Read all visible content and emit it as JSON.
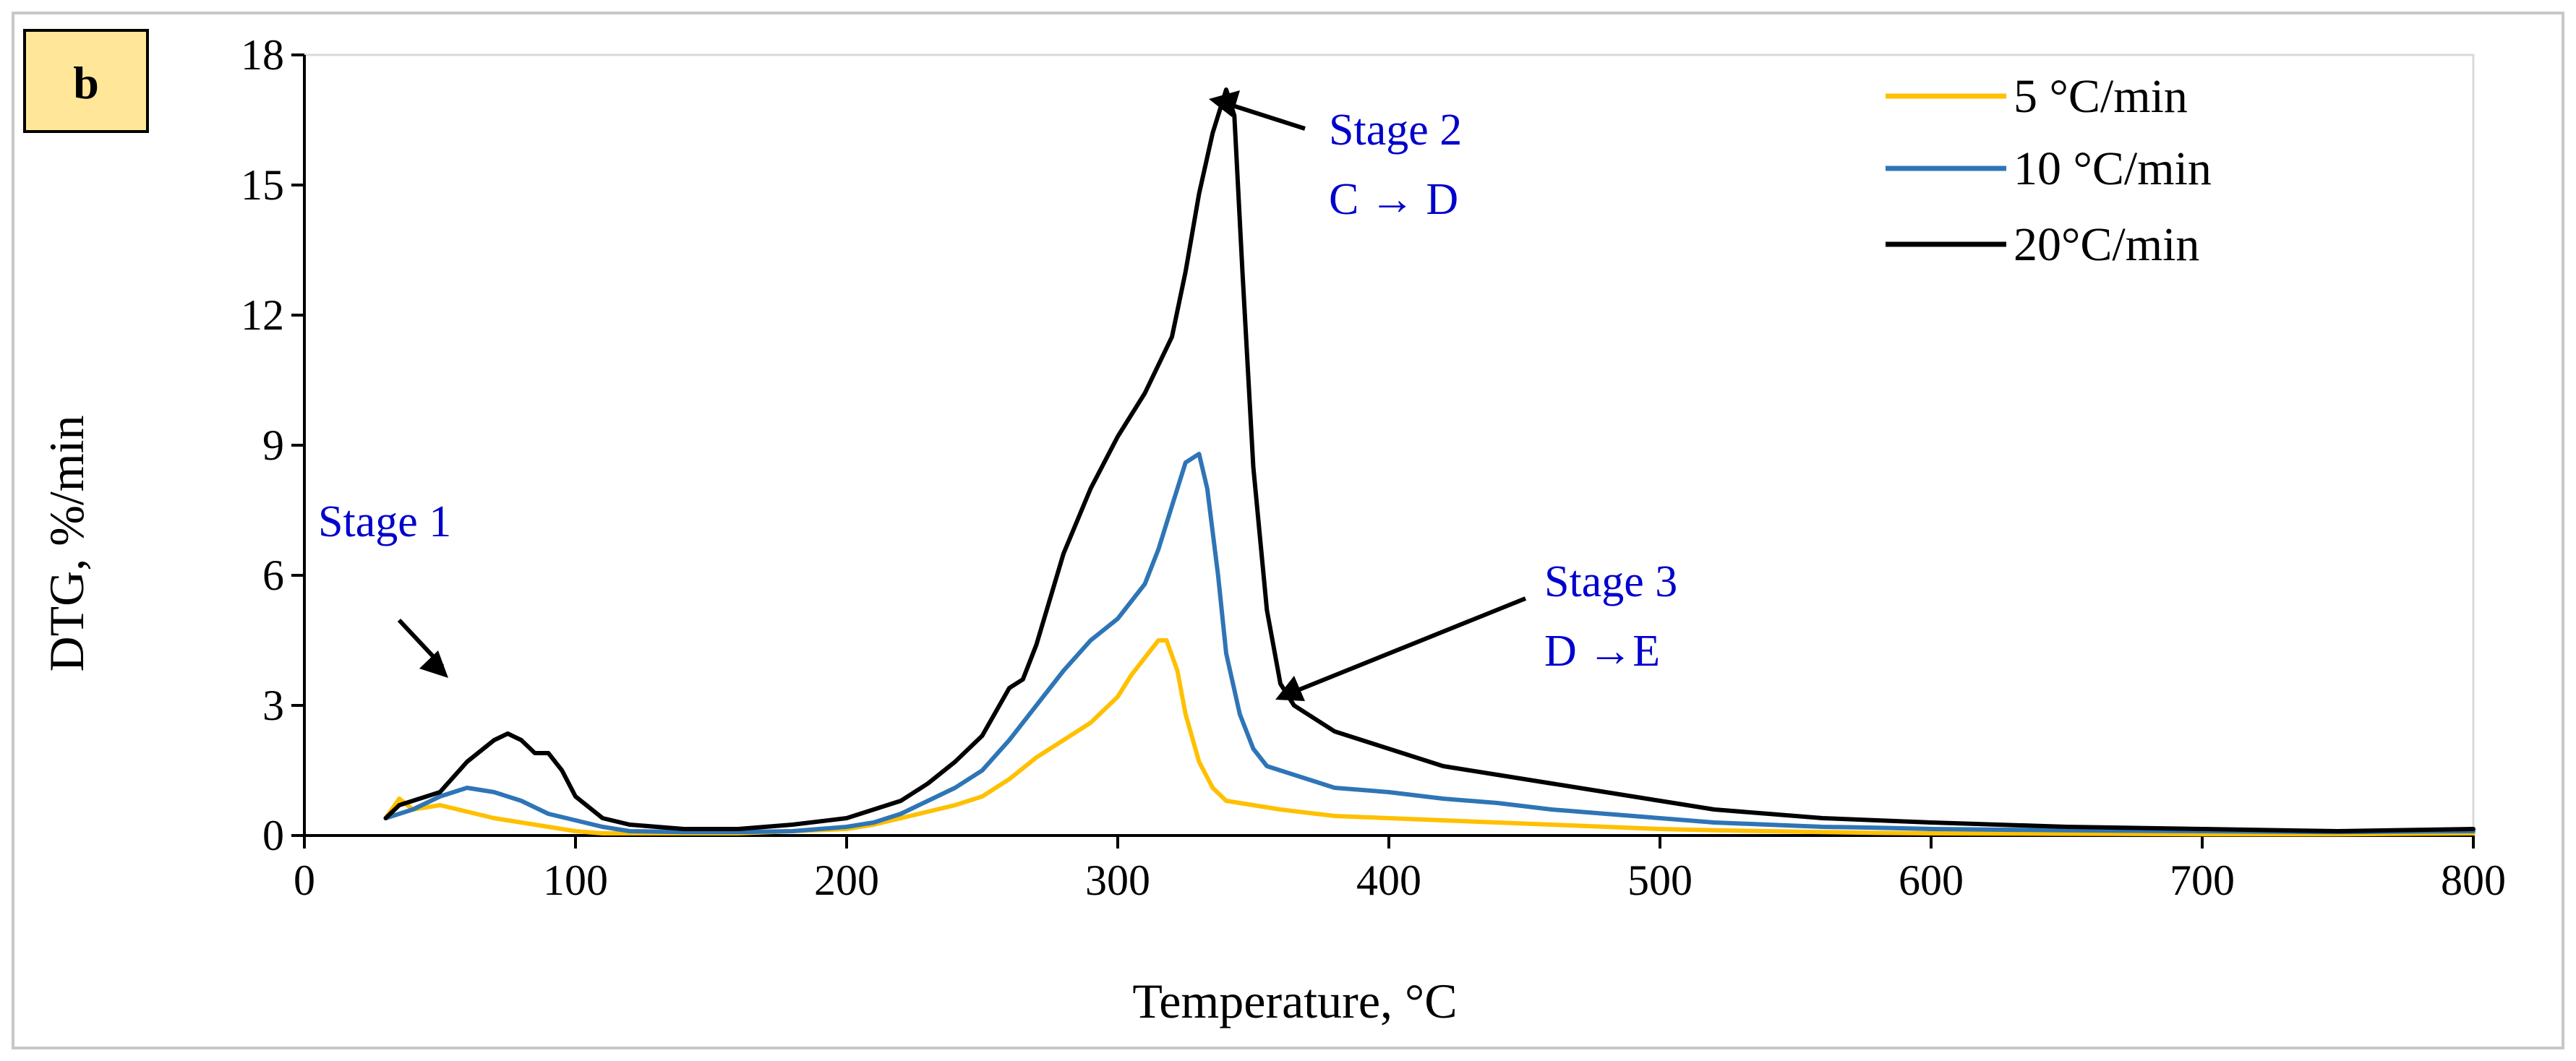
{
  "chart_data": {
    "type": "line",
    "panel_label": "b",
    "xlabel": "Temperature, °C",
    "ylabel": "DTG, %/min",
    "xlim": [
      0,
      800
    ],
    "ylim": [
      0,
      18
    ],
    "xticks": [
      0,
      100,
      200,
      300,
      400,
      500,
      600,
      700,
      800
    ],
    "yticks": [
      0,
      3,
      6,
      9,
      12,
      15,
      18
    ],
    "grid": false,
    "legend_position": "top-right",
    "series": [
      {
        "name": "5 °C/min",
        "color": "#FFC000",
        "x": [
          30,
          35,
          40,
          50,
          60,
          70,
          80,
          90,
          100,
          110,
          120,
          140,
          160,
          180,
          200,
          210,
          220,
          230,
          240,
          250,
          260,
          270,
          280,
          290,
          300,
          305,
          310,
          315,
          318,
          322,
          325,
          330,
          335,
          340,
          350,
          360,
          380,
          400,
          420,
          440,
          460,
          480,
          500,
          520,
          540,
          560,
          580,
          600,
          650,
          700,
          750,
          800
        ],
        "y": [
          0.4,
          0.85,
          0.6,
          0.7,
          0.55,
          0.4,
          0.3,
          0.2,
          0.1,
          0.05,
          0.05,
          0.05,
          0.05,
          0.1,
          0.15,
          0.25,
          0.4,
          0.55,
          0.7,
          0.9,
          1.3,
          1.8,
          2.2,
          2.6,
          3.2,
          3.7,
          4.1,
          4.5,
          4.5,
          3.8,
          2.8,
          1.7,
          1.1,
          0.8,
          0.7,
          0.6,
          0.45,
          0.4,
          0.35,
          0.3,
          0.25,
          0.2,
          0.15,
          0.12,
          0.1,
          0.08,
          0.06,
          0.05,
          0.04,
          0.03,
          0.03,
          0.05
        ]
      },
      {
        "name": "10 °C/min",
        "color": "#2E75B6",
        "x": [
          30,
          40,
          50,
          60,
          70,
          80,
          90,
          100,
          110,
          120,
          140,
          160,
          180,
          200,
          210,
          220,
          230,
          240,
          250,
          260,
          270,
          280,
          290,
          300,
          310,
          315,
          320,
          325,
          330,
          333,
          337,
          340,
          345,
          350,
          355,
          360,
          370,
          380,
          400,
          420,
          440,
          460,
          480,
          500,
          520,
          540,
          560,
          580,
          600,
          650,
          700,
          750,
          800
        ],
        "y": [
          0.4,
          0.6,
          0.9,
          1.1,
          1.0,
          0.8,
          0.5,
          0.35,
          0.2,
          0.1,
          0.08,
          0.08,
          0.1,
          0.2,
          0.3,
          0.5,
          0.8,
          1.1,
          1.5,
          2.2,
          3.0,
          3.8,
          4.5,
          5.0,
          5.8,
          6.6,
          7.6,
          8.6,
          8.8,
          8.0,
          6.0,
          4.2,
          2.8,
          2.0,
          1.6,
          1.5,
          1.3,
          1.1,
          1.0,
          0.85,
          0.75,
          0.6,
          0.5,
          0.4,
          0.3,
          0.25,
          0.2,
          0.18,
          0.15,
          0.12,
          0.1,
          0.08,
          0.1
        ]
      },
      {
        "name": "20°C/min",
        "color": "#000000",
        "x": [
          30,
          35,
          40,
          50,
          60,
          70,
          75,
          80,
          85,
          90,
          95,
          100,
          110,
          120,
          140,
          160,
          180,
          200,
          210,
          220,
          230,
          240,
          250,
          260,
          265,
          270,
          280,
          290,
          300,
          310,
          320,
          325,
          330,
          335,
          340,
          343,
          346,
          350,
          355,
          360,
          365,
          370,
          380,
          400,
          420,
          440,
          460,
          480,
          500,
          520,
          540,
          560,
          580,
          600,
          650,
          700,
          750,
          800
        ],
        "y": [
          0.4,
          0.7,
          0.8,
          1.0,
          1.7,
          2.2,
          2.35,
          2.2,
          1.9,
          1.9,
          1.5,
          0.9,
          0.4,
          0.25,
          0.15,
          0.15,
          0.25,
          0.4,
          0.6,
          0.8,
          1.2,
          1.7,
          2.3,
          3.4,
          3.6,
          4.4,
          6.5,
          8.0,
          9.2,
          10.2,
          11.5,
          13.0,
          14.8,
          16.2,
          17.2,
          16.6,
          13.0,
          8.5,
          5.2,
          3.5,
          3.0,
          2.8,
          2.4,
          2.0,
          1.6,
          1.4,
          1.2,
          1.0,
          0.8,
          0.6,
          0.5,
          0.4,
          0.35,
          0.3,
          0.2,
          0.15,
          0.1,
          0.15
        ]
      }
    ],
    "annotations": [
      {
        "name": "stage-1",
        "lines": [
          "Stage 1"
        ],
        "color": "#0000CC"
      },
      {
        "name": "stage-2",
        "lines": [
          "Stage 2",
          "C → D"
        ],
        "color": "#0000CC"
      },
      {
        "name": "stage-3",
        "lines": [
          "Stage  3",
          "D →E"
        ],
        "color": "#0000CC"
      }
    ]
  }
}
